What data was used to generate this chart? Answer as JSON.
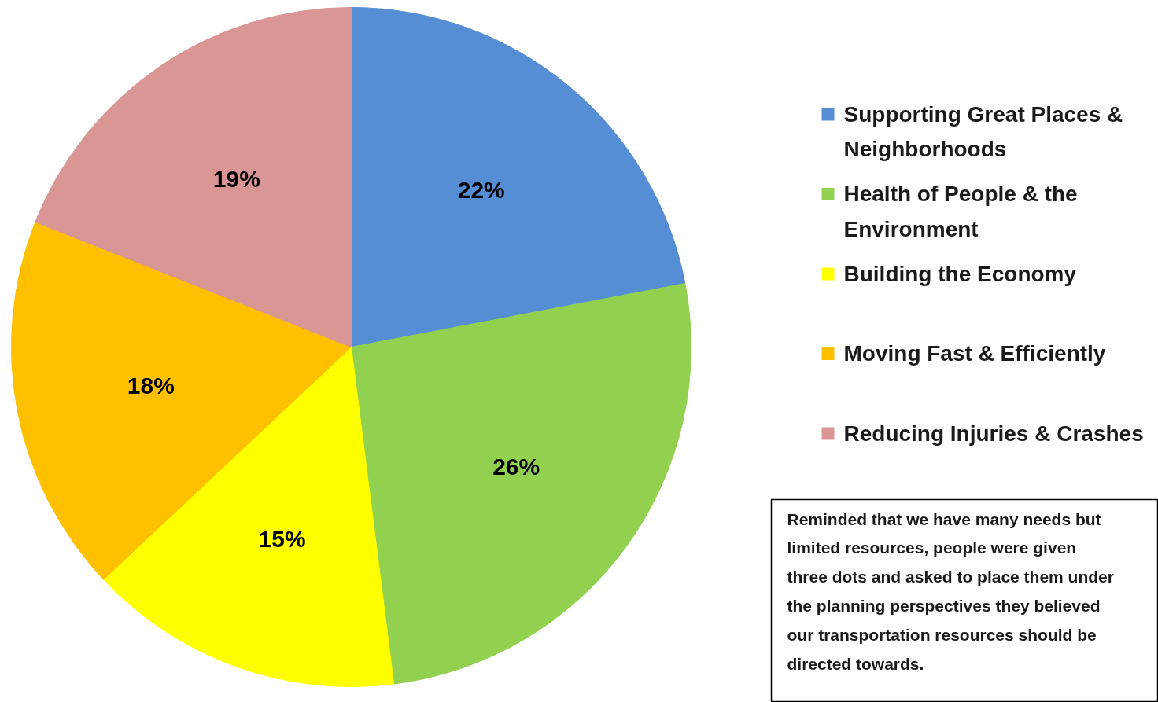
{
  "chart_data": {
    "type": "pie",
    "categories": [
      "Supporting Great Places & Neighborhoods",
      "Health of People & the Environment",
      "Building the Economy",
      "Moving Fast & Efficiently",
      "Reducing Injuries & Crashes"
    ],
    "values": [
      22,
      26,
      15,
      18,
      19
    ],
    "colors": [
      "#558ed5",
      "#92d050",
      "#ffff00",
      "#ffc000",
      "#d99694"
    ],
    "value_labels": [
      "22%",
      "26%",
      "15%",
      "18%",
      "19%"
    ],
    "legend": "right",
    "annotations": [
      "Reminded that we have many needs but limited resources, people were given three dots and asked to place them under the planning perspectives they believed our transportation resources should be directed towards."
    ]
  }
}
